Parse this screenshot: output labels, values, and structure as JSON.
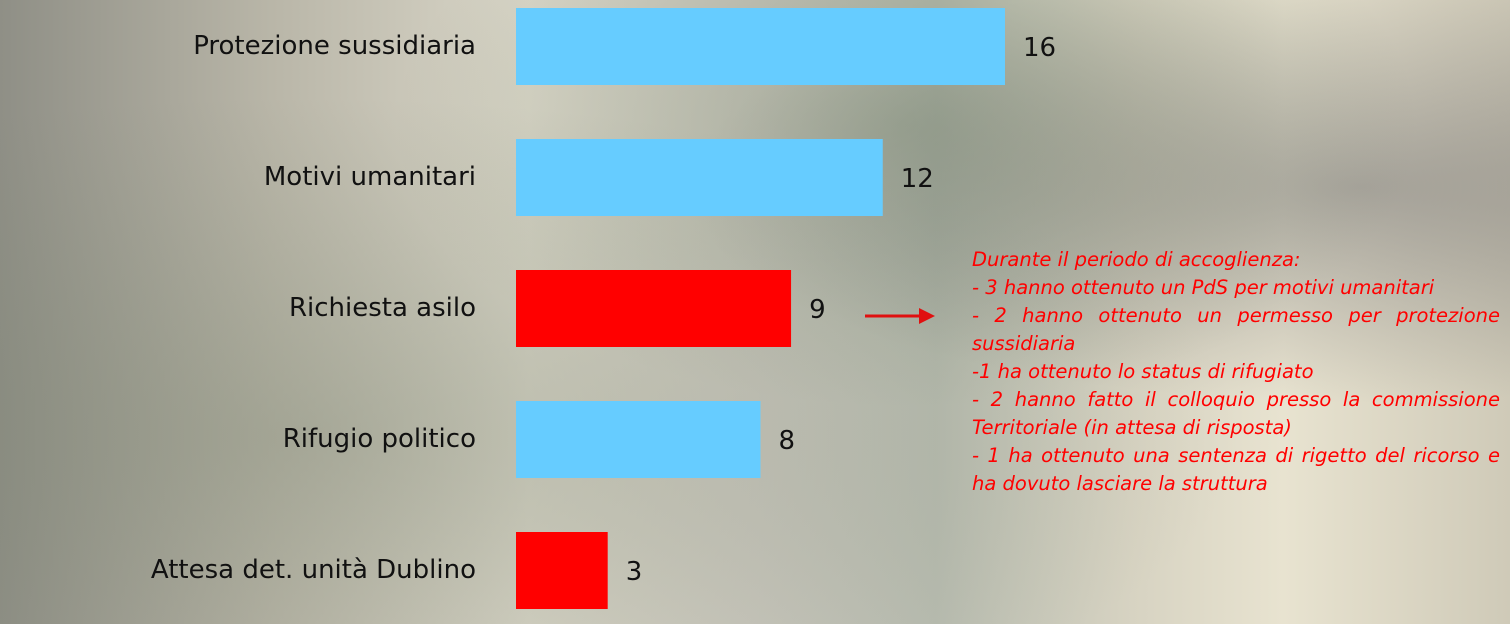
{
  "chart_data": {
    "type": "bar",
    "orientation": "horizontal",
    "categories": [
      "Protezione sussidiaria",
      "Motivi umanitari",
      "Richiesta asilo",
      "Rifugio politico",
      "Attesa det. unità Dublino"
    ],
    "values": [
      16,
      12,
      9,
      8,
      3
    ],
    "colors": [
      "#66ccff",
      "#66ccff",
      "#ff0000",
      "#66ccff",
      "#ff0000"
    ],
    "annotation": [
      "Durante il periodo di accoglienza:",
      "- 3 hanno ottenuto un PdS per motivi umanitari",
      "- 2 hanno ottenuto un permesso per protezione sussidiaria",
      "-1 ha ottenuto lo status di rifugiato",
      "- 2 hanno fatto il colloquio presso la commissione Territoriale (in attesa di risposta)",
      "- 1 ha ottenuto una sentenza di rigetto del ricorso e ha dovuto lasciare la struttura"
    ]
  }
}
